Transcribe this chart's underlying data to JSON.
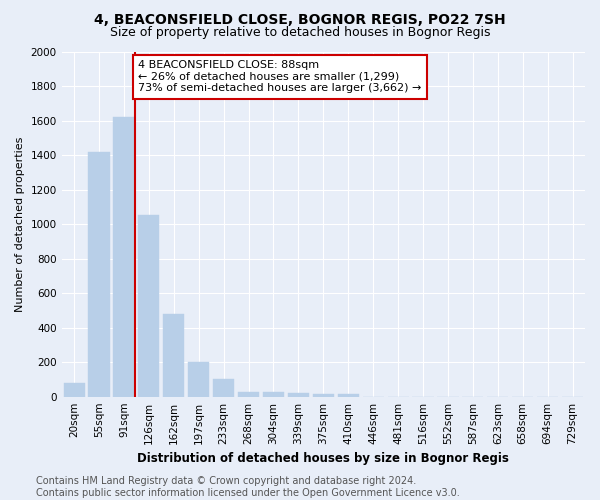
{
  "title": "4, BEACONSFIELD CLOSE, BOGNOR REGIS, PO22 7SH",
  "subtitle": "Size of property relative to detached houses in Bognor Regis",
  "xlabel": "Distribution of detached houses by size in Bognor Regis",
  "ylabel": "Number of detached properties",
  "categories": [
    "20sqm",
    "55sqm",
    "91sqm",
    "126sqm",
    "162sqm",
    "197sqm",
    "233sqm",
    "268sqm",
    "304sqm",
    "339sqm",
    "375sqm",
    "410sqm",
    "446sqm",
    "481sqm",
    "516sqm",
    "552sqm",
    "587sqm",
    "623sqm",
    "658sqm",
    "694sqm",
    "729sqm"
  ],
  "values": [
    80,
    1420,
    1620,
    1050,
    480,
    200,
    100,
    30,
    25,
    20,
    15,
    15,
    0,
    0,
    0,
    0,
    0,
    0,
    0,
    0,
    0
  ],
  "bar_color": "#b8cfe8",
  "bar_edge_color": "#b8cfe8",
  "red_line_index": 2,
  "annotation_text": "4 BEACONSFIELD CLOSE: 88sqm\n← 26% of detached houses are smaller (1,299)\n73% of semi-detached houses are larger (3,662) →",
  "annotation_box_color": "#ffffff",
  "annotation_box_edge_color": "#cc0000",
  "red_line_color": "#cc0000",
  "ylim": [
    0,
    2000
  ],
  "yticks": [
    0,
    200,
    400,
    600,
    800,
    1000,
    1200,
    1400,
    1600,
    1800,
    2000
  ],
  "background_color": "#e8eef8",
  "plot_background": "#e8eef8",
  "footer_text": "Contains HM Land Registry data © Crown copyright and database right 2024.\nContains public sector information licensed under the Open Government Licence v3.0.",
  "title_fontsize": 10,
  "subtitle_fontsize": 9,
  "xlabel_fontsize": 8.5,
  "ylabel_fontsize": 8,
  "tick_fontsize": 7.5,
  "annotation_fontsize": 8,
  "footer_fontsize": 7
}
